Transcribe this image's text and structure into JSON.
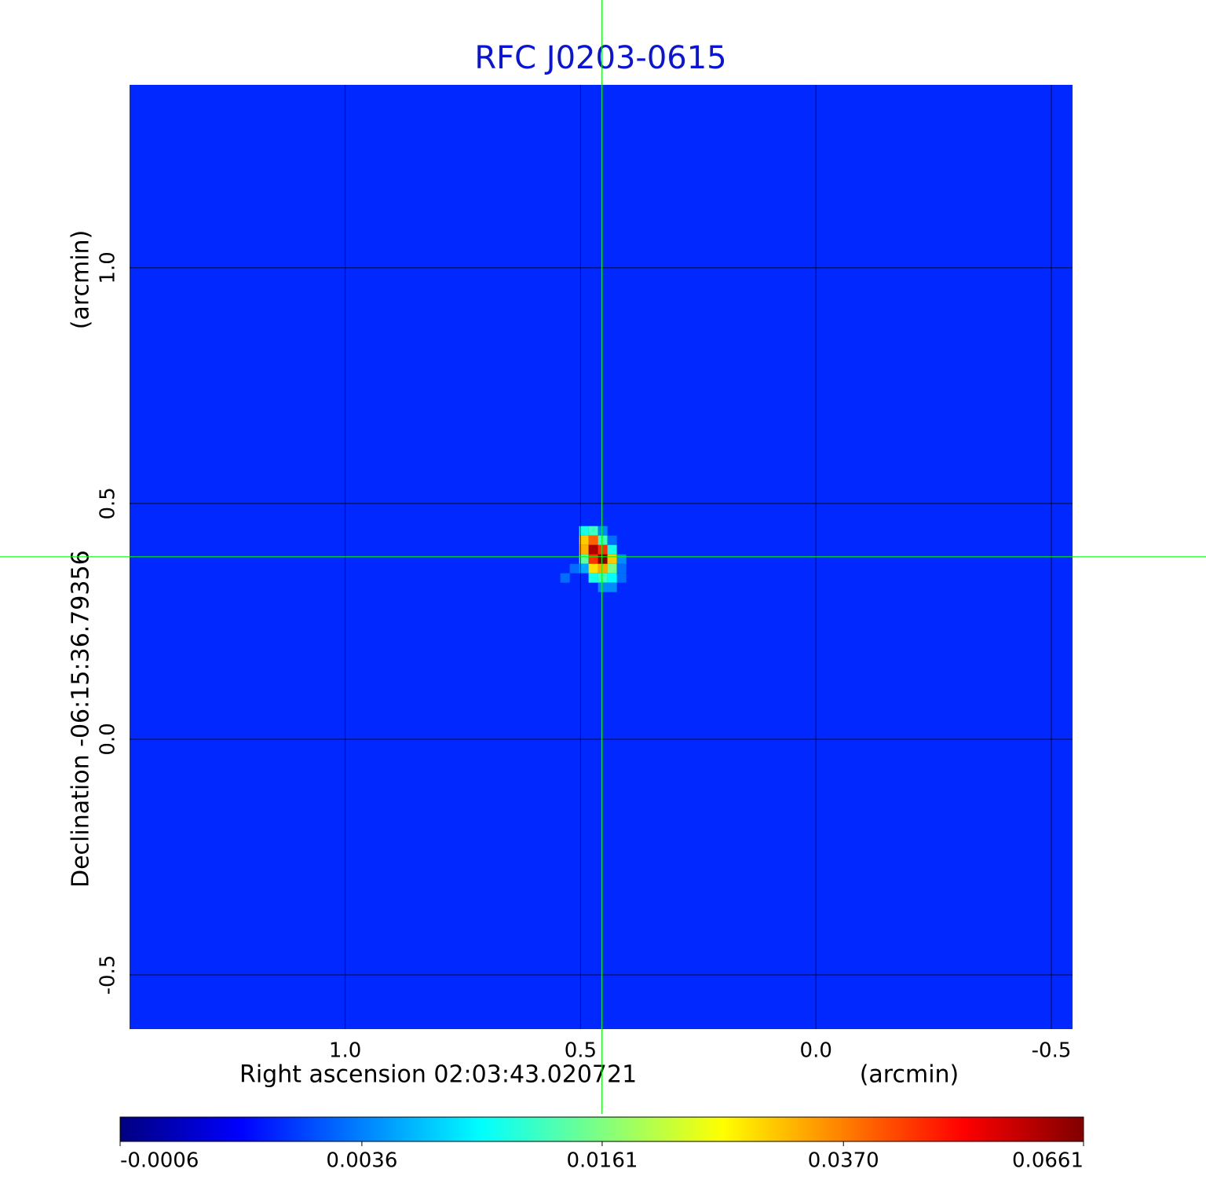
{
  "chart_data": {
    "type": "image",
    "title": "RFC J0203-0615",
    "title_color": "#0a14d8",
    "x_label": "Right ascension  02:03:43.020721",
    "x_unit": "(arcmin)",
    "y_label": "Declination  -06:15:36.79356",
    "y_unit": "(arcmin)",
    "xlim": [
      1.458,
      -0.545
    ],
    "ylim": [
      -0.615,
      1.388
    ],
    "xticks": [
      {
        "value": 1,
        "label": "1.0"
      },
      0.5,
      {
        "value": 0,
        "label": "0.0"
      },
      -0.5
    ],
    "yticks": [
      -0.5,
      {
        "value": 0,
        "label": "0.0"
      },
      0.5,
      {
        "value": 1,
        "label": "1.0"
      }
    ],
    "grid": true,
    "colormap": "jet",
    "colorbar_scale": "sqrt",
    "clim": [
      -0.0006,
      0.0661
    ],
    "colorbar_ticks": [
      -0.0006,
      0.0036,
      0.0161,
      {
        "value": 0.037,
        "label": "0.0370"
      },
      0.0661
    ],
    "background": 0.0012,
    "pixel_size": 0.02,
    "source": {
      "x": [
        0.493,
        0.473,
        0.453,
        0.493,
        0.473,
        0.453,
        0.433,
        0.493,
        0.473,
        0.453,
        0.433,
        0.493,
        0.473,
        0.453,
        0.433,
        0.413,
        0.493,
        0.473,
        0.453,
        0.433,
        0.413,
        0.473,
        0.453,
        0.433,
        0.413,
        0.453,
        0.433,
        0.513,
        0.533
      ],
      "y": [
        0.442,
        0.442,
        0.442,
        0.422,
        0.422,
        0.422,
        0.422,
        0.402,
        0.402,
        0.402,
        0.402,
        0.382,
        0.382,
        0.382,
        0.382,
        0.382,
        0.362,
        0.362,
        0.362,
        0.362,
        0.362,
        0.342,
        0.342,
        0.342,
        0.342,
        0.322,
        0.322,
        0.362,
        0.342
      ],
      "values": [
        0.01,
        0.012,
        0.004,
        0.03,
        0.04,
        0.012,
        0.003,
        0.032,
        0.06,
        0.045,
        0.01,
        0.014,
        0.045,
        0.0661,
        0.03,
        0.004,
        0.005,
        0.028,
        0.033,
        0.015,
        0.003,
        0.01,
        0.012,
        0.009,
        0.003,
        0.004,
        0.004,
        0.003,
        0.003
      ]
    },
    "crosshair": {
      "x": 0.455,
      "y": 0.387,
      "color": "#00ff00"
    }
  }
}
